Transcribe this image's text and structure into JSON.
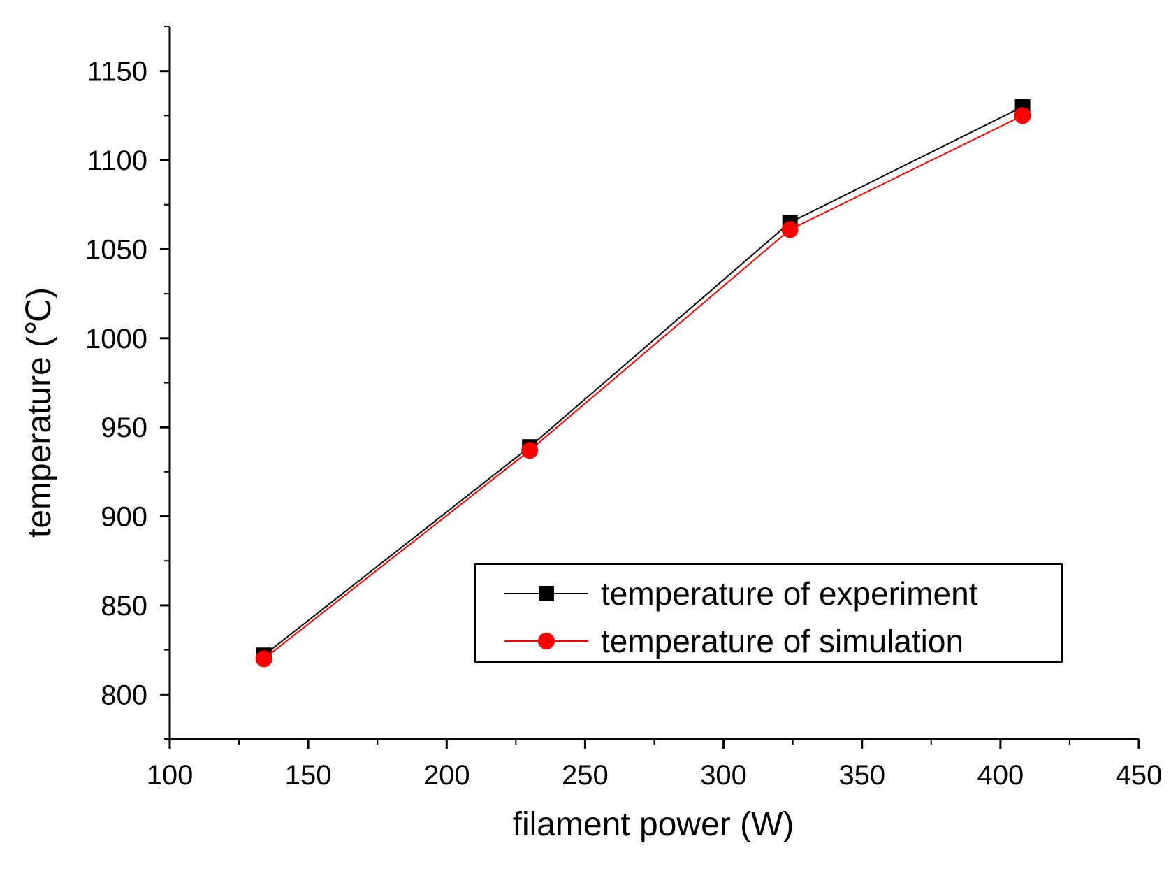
{
  "chart_data": {
    "type": "line",
    "title": "",
    "xlabel": "filament power (W)",
    "ylabel": "temperature (℃)",
    "xlim": [
      100,
      450
    ],
    "ylim": [
      775,
      1175
    ],
    "xticks": [
      100,
      150,
      200,
      250,
      300,
      350,
      400,
      450
    ],
    "yticks": [
      800,
      850,
      900,
      950,
      1000,
      1050,
      1100,
      1150
    ],
    "xtick_labels": [
      "100",
      "150",
      "200",
      "250",
      "300",
      "350",
      "400",
      "450"
    ],
    "ytick_labels": [
      "800",
      "850",
      "900",
      "950",
      "1000",
      "1050",
      "1100",
      "1150"
    ],
    "grid": false,
    "legend_position": "lower-right",
    "series": [
      {
        "name": "temperature of experiment",
        "color": "#000000",
        "marker": "square",
        "x": [
          134,
          230,
          324,
          408
        ],
        "y": [
          822,
          939,
          1065,
          1130
        ]
      },
      {
        "name": "temperature of simulation",
        "color": "#ff0000",
        "marker": "circle",
        "x": [
          134,
          230,
          324,
          408
        ],
        "y": [
          820,
          937,
          1061,
          1125
        ]
      }
    ]
  }
}
